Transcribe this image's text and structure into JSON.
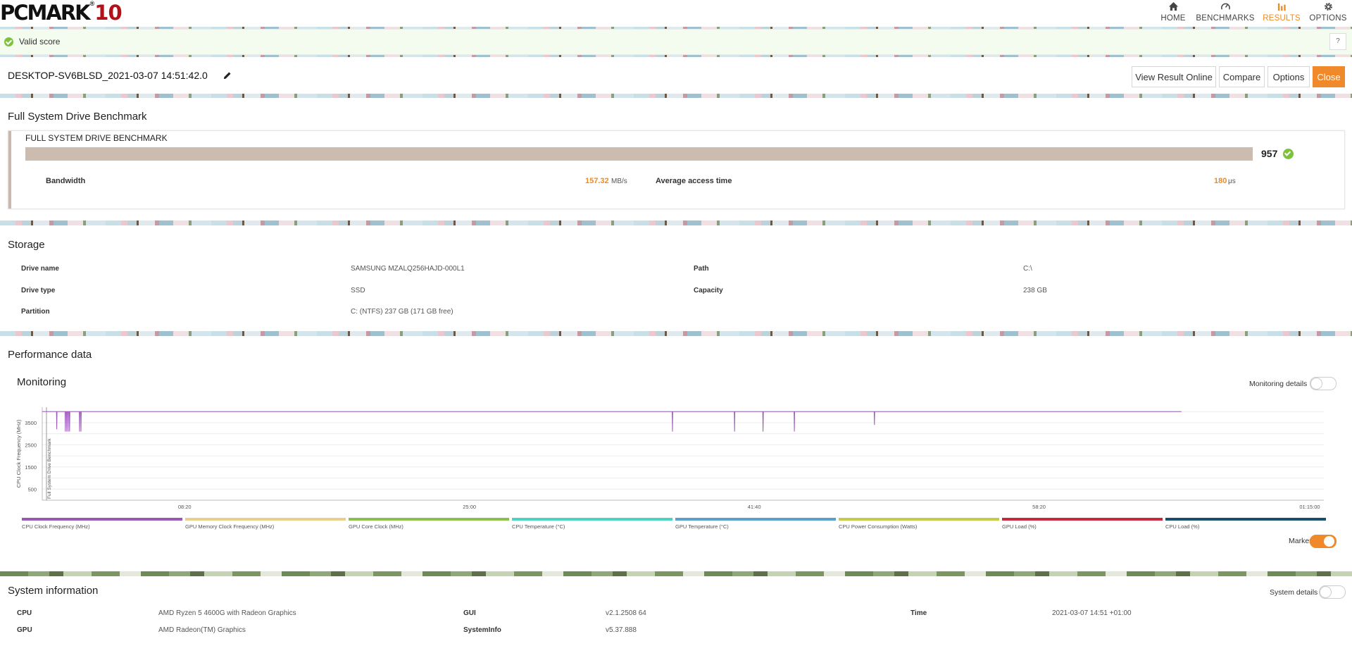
{
  "app": {
    "logo_text": "PCMARK",
    "logo_num": "10",
    "logo_reg": "®"
  },
  "nav": {
    "home": "HOME",
    "benchmarks": "BENCHMARKS",
    "results": "RESULTS",
    "options": "OPTIONS"
  },
  "status": {
    "valid": "Valid score",
    "help": "?"
  },
  "result": {
    "title": "DESKTOP-SV6BLSD_2021-03-07 14:51:42.0",
    "buttons": {
      "view_online": "View Result Online",
      "compare": "Compare",
      "options": "Options",
      "close": "Close"
    }
  },
  "benchmark": {
    "section_title": "Full System Drive Benchmark",
    "box_title": "FULL SYSTEM DRIVE BENCHMARK",
    "score": "957",
    "bandwidth_label": "Bandwidth",
    "bandwidth_value": "157.32",
    "bandwidth_unit": "MB/s",
    "access_label": "Average access time",
    "access_value": "180",
    "access_unit": "μs"
  },
  "storage": {
    "section_title": "Storage",
    "rows": [
      {
        "label": "Drive name",
        "value": "SAMSUNG MZALQ256HAJD-000L1"
      },
      {
        "label": "Drive type",
        "value": "SSD"
      },
      {
        "label": "Partition",
        "value": "C: (NTFS) 237 GB (171 GB free)"
      }
    ],
    "right_rows": [
      {
        "label": "Path",
        "value": "C:\\"
      },
      {
        "label": "Capacity",
        "value": "238 GB"
      }
    ]
  },
  "performance": {
    "section_title": "Performance data",
    "monitoring_title": "Monitoring",
    "monitoring_details": "Monitoring details",
    "markers": "Markers"
  },
  "chart_data": {
    "type": "line",
    "title": "",
    "ylabel": "CPU Clock Frequency (MHz)",
    "marker_label": "Full System Drive Benchmark",
    "yticks": [
      500,
      1500,
      2500,
      3500
    ],
    "ylim": [
      0,
      4200
    ],
    "xticks": [
      "08:20",
      "25:00",
      "41:40",
      "58:20",
      "01:15:00"
    ],
    "xlim_seconds": [
      0,
      4500
    ],
    "series": [
      {
        "name": "CPU Clock Frequency (MHz)",
        "color": "#9b59b6",
        "x": [
          0,
          50,
          51,
          52,
          80,
          81,
          82,
          85,
          86,
          87,
          90,
          91,
          92,
          95,
          96,
          97,
          130,
          131,
          132,
          135,
          136,
          137,
          100,
          220,
          225,
          380,
          420,
          500,
          600,
          700,
          800,
          900,
          1000,
          1100,
          1200,
          1300,
          1400,
          1500,
          1600,
          1700,
          1800,
          1900,
          2000,
          2100,
          2200,
          2212,
          2213,
          2214,
          2400,
          2430,
          2431,
          2432,
          2530,
          2531,
          2532,
          2640,
          2641,
          2642,
          2900,
          2921,
          2922,
          2923,
          3100,
          3500,
          3800,
          4000
        ],
        "y": [
          4000,
          4000,
          3200,
          4000,
          4000,
          3100,
          4000,
          4000,
          3100,
          4000,
          4000,
          3100,
          4000,
          4000,
          3100,
          4000,
          4000,
          3100,
          4000,
          4000,
          3100,
          4000,
          4000,
          4000,
          4000,
          4000,
          4000,
          4000,
          4000,
          4000,
          4000,
          4000,
          4000,
          4000,
          4000,
          4000,
          4000,
          4000,
          4000,
          4000,
          4000,
          4000,
          4000,
          4000,
          4000,
          4000,
          3100,
          4000,
          4000,
          4000,
          3100,
          4000,
          4000,
          3100,
          4000,
          4000,
          3100,
          4000,
          4000,
          4000,
          3400,
          4000,
          4000,
          4000,
          4000,
          4000
        ]
      }
    ],
    "legend": [
      {
        "name": "CPU Clock Frequency (MHz)",
        "color": "#9b59b6"
      },
      {
        "name": "GPU Memory Clock Frequency (MHz)",
        "color": "#e8d08c"
      },
      {
        "name": "GPU Core Clock (MHz)",
        "color": "#8dc04a"
      },
      {
        "name": "CPU Temperature (°C)",
        "color": "#4dd4c0"
      },
      {
        "name": "GPU Temperature (°C)",
        "color": "#5aa0c8"
      },
      {
        "name": "CPU Power Consumption (Watts)",
        "color": "#c5cc4a"
      },
      {
        "name": "GPU Load (%)",
        "color": "#c8283c"
      },
      {
        "name": "CPU Load (%)",
        "color": "#1a4e6e"
      }
    ]
  },
  "sysinfo": {
    "section_title": "System information",
    "details": "System details",
    "rows": [
      {
        "label": "CPU",
        "value": "AMD Ryzen 5 4600G with Radeon Graphics"
      },
      {
        "label": "GPU",
        "value": "AMD Radeon(TM) Graphics"
      }
    ],
    "mid_rows": [
      {
        "label": "GUI",
        "value": "v2.1.2508 64"
      },
      {
        "label": "SystemInfo",
        "value": "v5.37.888"
      }
    ],
    "right_rows": [
      {
        "label": "Time",
        "value": "2021-03-07 14:51 +01:00"
      }
    ]
  }
}
